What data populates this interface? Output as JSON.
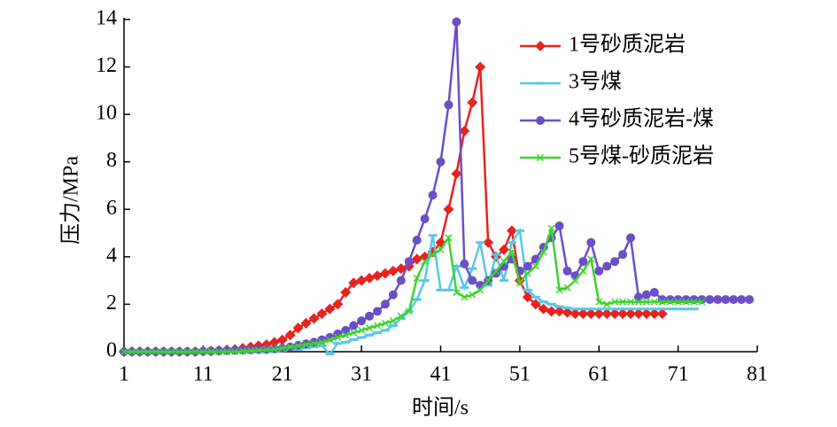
{
  "chart_data": {
    "type": "line",
    "xlabel": "时间/s",
    "ylabel": "压力/MPa",
    "xlim": [
      1,
      81
    ],
    "xticks": [
      1,
      11,
      21,
      31,
      41,
      51,
      61,
      71,
      81
    ],
    "ylim": [
      0,
      14
    ],
    "yticks": [
      0,
      2,
      4,
      6,
      8,
      10,
      12,
      14
    ],
    "legend": "upper right",
    "x": [
      1,
      2,
      3,
      4,
      5,
      6,
      7,
      8,
      9,
      10,
      11,
      12,
      13,
      14,
      15,
      16,
      17,
      18,
      19,
      20,
      21,
      22,
      23,
      24,
      25,
      26,
      27,
      28,
      29,
      30,
      31,
      32,
      33,
      34,
      35,
      36,
      37,
      38,
      39,
      40,
      41,
      42,
      43,
      44,
      45,
      46,
      47,
      48,
      49,
      50,
      51,
      52,
      53,
      54,
      55,
      56,
      57,
      58,
      59,
      60,
      61,
      62,
      63,
      64,
      65,
      66,
      67,
      68,
      69,
      70,
      71,
      72,
      73,
      74,
      75,
      76,
      77,
      78,
      79,
      80
    ],
    "series": [
      {
        "name": "1号砂质泥岩",
        "color": "#e8231f",
        "marker": "diamond",
        "values": [
          0,
          0,
          0,
          0,
          0,
          0,
          0,
          0,
          0,
          0,
          0.02,
          0.03,
          0.05,
          0.08,
          0.1,
          0.15,
          0.2,
          0.25,
          0.3,
          0.4,
          0.5,
          0.7,
          1.0,
          1.2,
          1.4,
          1.6,
          1.8,
          2.0,
          2.5,
          2.9,
          3.0,
          3.1,
          3.2,
          3.3,
          3.4,
          3.5,
          3.6,
          3.9,
          4.0,
          4.2,
          4.6,
          6.0,
          7.5,
          9.3,
          10.5,
          12.0,
          4.6,
          4.0,
          4.3,
          5.1,
          3.0,
          2.3,
          2.0,
          1.8,
          1.7,
          1.7,
          1.65,
          1.6,
          1.6,
          1.6,
          1.6,
          1.6,
          1.6,
          1.6,
          1.6,
          1.6,
          1.6,
          1.6,
          1.6,
          null,
          null,
          null,
          null,
          null,
          null,
          null,
          null,
          null,
          null,
          null
        ]
      },
      {
        "name": "3号煤",
        "color": "#56c8e8",
        "marker": "dash",
        "values": [
          0,
          0,
          0,
          0,
          0,
          0,
          0,
          0,
          0,
          0,
          0,
          0,
          0,
          0,
          0,
          0,
          0,
          0,
          0,
          0,
          0.05,
          0.08,
          0.1,
          0.15,
          0.2,
          0.25,
          -0.1,
          0.35,
          0.4,
          0.5,
          0.6,
          0.7,
          0.8,
          0.9,
          1.1,
          1.4,
          1.7,
          2.2,
          3.0,
          4.9,
          2.6,
          2.6,
          3.6,
          2.7,
          3.5,
          4.6,
          2.8,
          4.1,
          3.0,
          4.6,
          5.1,
          2.6,
          2.3,
          2.1,
          2.0,
          1.9,
          1.85,
          1.8,
          1.8,
          1.8,
          1.8,
          1.8,
          1.8,
          1.8,
          1.8,
          1.8,
          1.8,
          1.8,
          1.8,
          1.8,
          1.8,
          1.8,
          1.8,
          null,
          null,
          null,
          null,
          null,
          null,
          null
        ]
      },
      {
        "name": "4号砂质泥岩-煤",
        "color": "#6a4fc8",
        "marker": "circle",
        "values": [
          0,
          0,
          0,
          0,
          0,
          0,
          0,
          0,
          0,
          0,
          0.02,
          0.03,
          0.04,
          0.05,
          0.06,
          0.07,
          0.08,
          0.09,
          0.1,
          0.12,
          0.15,
          0.2,
          0.27,
          0.33,
          0.4,
          0.5,
          0.6,
          0.75,
          0.9,
          1.1,
          1.3,
          1.5,
          1.7,
          2.0,
          2.4,
          3.0,
          3.8,
          4.7,
          5.6,
          6.6,
          8.0,
          10.4,
          13.9,
          3.7,
          3.0,
          2.8,
          3.0,
          3.3,
          3.6,
          3.9,
          3.4,
          3.6,
          3.9,
          4.4,
          4.8,
          5.3,
          3.4,
          3.2,
          3.8,
          4.6,
          3.4,
          3.6,
          3.8,
          4.1,
          4.8,
          2.3,
          2.4,
          2.5,
          2.2,
          2.2,
          2.2,
          2.2,
          2.2,
          2.2,
          2.2,
          2.2,
          2.2,
          2.2,
          2.2,
          2.2
        ]
      },
      {
        "name": "5号煤-砂质泥岩",
        "color": "#3ed32e",
        "marker": "x",
        "values": [
          0,
          0,
          0,
          0,
          0,
          0,
          0,
          0,
          0,
          0,
          0,
          0,
          0,
          0,
          0,
          0.02,
          0.04,
          0.06,
          0.08,
          0.1,
          0.15,
          0.2,
          0.25,
          0.3,
          0.35,
          0.4,
          0.5,
          0.6,
          0.7,
          0.8,
          0.9,
          1.0,
          1.1,
          1.2,
          1.3,
          1.5,
          1.7,
          3.1,
          3.8,
          4.1,
          4.3,
          4.8,
          2.5,
          2.3,
          2.4,
          2.6,
          3.0,
          3.4,
          3.8,
          4.2,
          2.9,
          3.3,
          3.6,
          4.2,
          5.2,
          2.6,
          2.7,
          3.0,
          3.4,
          3.9,
          2.1,
          2.0,
          2.1,
          2.1,
          2.1,
          2.1,
          2.1,
          2.1,
          2.1,
          2.1,
          2.1,
          2.1,
          2.1,
          2.1,
          null,
          null,
          null,
          null,
          null,
          null
        ]
      }
    ]
  }
}
